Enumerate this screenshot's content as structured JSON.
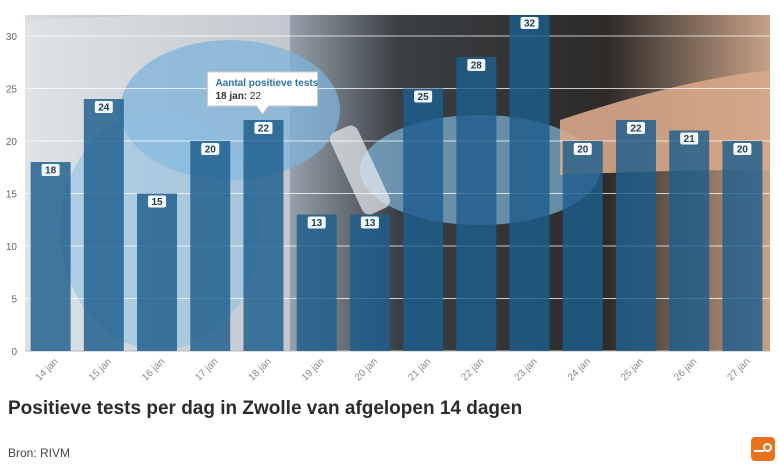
{
  "chart_data": {
    "type": "bar",
    "categories": [
      "14 jan",
      "15 jan",
      "16 jan",
      "17 jan",
      "18 jan",
      "19 jan",
      "20 jan",
      "21 jan",
      "22 jan",
      "23 jan",
      "24 jan",
      "25 jan",
      "26 jan",
      "27 jan"
    ],
    "series": [
      {
        "values": [
          18,
          24,
          15,
          20,
          22,
          13,
          13,
          25,
          28,
          32,
          20,
          22,
          21,
          20
        ]
      }
    ],
    "yticks": [
      0,
      5,
      10,
      15,
      20,
      25,
      30
    ],
    "ylim": [
      0,
      32
    ],
    "grid": true,
    "bar_color": "#1d5e8c",
    "tooltip": {
      "title": "Aantal positieve tests",
      "date": "18 jan",
      "value": "22"
    }
  },
  "title": "Positieve tests per dag in Zwolle van afgelopen 14 dagen",
  "source": "Bron: RIVM",
  "logo_color": "#e8731c"
}
